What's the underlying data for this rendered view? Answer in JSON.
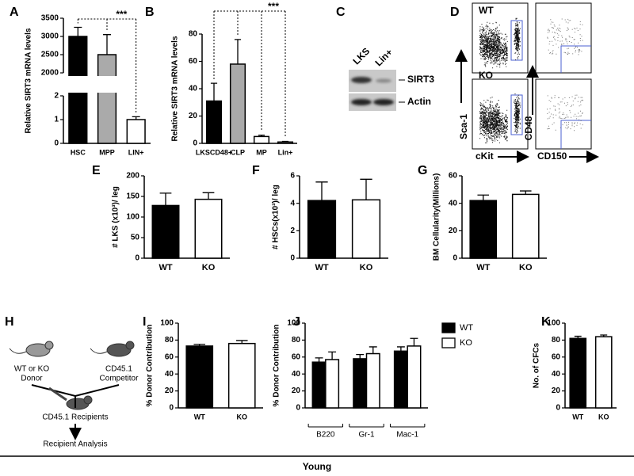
{
  "chart_data": [
    {
      "type": "bar",
      "label": "A",
      "ylabel": "Relative SIRT3 mRNA levels",
      "categories": [
        "HSC",
        "MPP",
        "LIN+"
      ],
      "values": [
        3000,
        2500,
        1
      ],
      "errors": [
        250,
        550,
        0.12
      ],
      "colors": [
        "#000000",
        "#aaaaaa",
        "#ffffff"
      ],
      "y_segments": [
        {
          "ylim": [
            0,
            2
          ],
          "yticks": [
            0,
            1,
            2
          ]
        },
        {
          "ylim": [
            2000,
            3500
          ],
          "yticks": [
            2000,
            2500,
            3000,
            3500
          ]
        }
      ],
      "significance": "***"
    },
    {
      "type": "bar",
      "label": "B",
      "ylabel": "Relative SIRT3 mRNA levels",
      "categories": [
        "LKSCD48+",
        "CLP",
        "MP",
        "Lin+"
      ],
      "values": [
        31,
        58,
        5,
        1
      ],
      "errors": [
        13,
        18,
        1,
        0.4
      ],
      "colors": [
        "#000000",
        "#aaaaaa",
        "#ffffff",
        "#ffffff"
      ],
      "ylim": [
        0,
        80
      ],
      "yticks": [
        0,
        20,
        40,
        60,
        80
      ],
      "significance": "***"
    },
    {
      "type": "bar",
      "label": "E",
      "ylabel": "# LKS (x10³)/ leg",
      "categories": [
        "WT",
        "KO"
      ],
      "values": [
        128,
        143
      ],
      "errors": [
        30,
        16
      ],
      "colors": [
        "#000000",
        "#ffffff"
      ],
      "ylim": [
        0,
        200
      ],
      "yticks": [
        0,
        50,
        100,
        150,
        200
      ]
    },
    {
      "type": "bar",
      "label": "F",
      "ylabel": "# HSCs(x10³)/ leg",
      "categories": [
        "WT",
        "KO"
      ],
      "values": [
        4.2,
        4.25
      ],
      "errors": [
        1.35,
        1.5
      ],
      "colors": [
        "#000000",
        "#ffffff"
      ],
      "ylim": [
        0,
        6
      ],
      "yticks": [
        0,
        2,
        4,
        6
      ]
    },
    {
      "type": "bar",
      "label": "G",
      "ylabel": "BM Cellularity(Millions)",
      "categories": [
        "WT",
        "KO"
      ],
      "values": [
        42,
        46.5
      ],
      "errors": [
        4,
        2.5
      ],
      "colors": [
        "#000000",
        "#ffffff"
      ],
      "ylim": [
        0,
        60
      ],
      "yticks": [
        0,
        20,
        40,
        60
      ]
    },
    {
      "type": "bar",
      "label": "I",
      "ylabel": "% Donor Contribution",
      "categories": [
        "WT",
        "KO"
      ],
      "values": [
        73,
        76
      ],
      "errors": [
        2,
        3.5
      ],
      "colors": [
        "#000000",
        "#ffffff"
      ],
      "ylim": [
        0,
        100
      ],
      "yticks": [
        0,
        20,
        40,
        60,
        80,
        100
      ]
    },
    {
      "type": "bar",
      "label": "J",
      "ylabel": "% Donor Contribution",
      "categories": [
        "B220",
        "Gr-1",
        "Mac-1"
      ],
      "series": [
        {
          "name": "WT",
          "color": "#000000",
          "values": [
            54,
            58,
            67
          ],
          "errors": [
            5,
            5,
            5
          ]
        },
        {
          "name": "KO",
          "color": "#ffffff",
          "values": [
            57,
            64,
            73
          ],
          "errors": [
            9,
            8,
            9
          ]
        }
      ],
      "ylim": [
        0,
        100
      ],
      "yticks": [
        0,
        20,
        40,
        60,
        80,
        100
      ]
    },
    {
      "type": "bar",
      "label": "K",
      "ylabel": "No. of CFCs",
      "categories": [
        "WT",
        "KO"
      ],
      "values": [
        82,
        84
      ],
      "errors": [
        2.5,
        2
      ],
      "colors": [
        "#000000",
        "#ffffff"
      ],
      "ylim": [
        0,
        100
      ],
      "yticks": [
        0,
        20,
        40,
        60,
        80,
        100
      ]
    }
  ],
  "blot": {
    "label": "C",
    "lanes": [
      "LKS",
      "Lin+"
    ],
    "bands": [
      "SIRT3",
      "Actin"
    ]
  },
  "flow": {
    "label": "D",
    "genotypes": [
      "WT",
      "KO"
    ],
    "left_xlabel": "cKit",
    "left_ylabel": "Sca-1",
    "right_xlabel": "CD150",
    "right_ylabel": "CD48"
  },
  "diagram": {
    "label": "H",
    "donor": [
      "WT or KO",
      "Donor"
    ],
    "competitor": [
      "CD45.1",
      "Competitor"
    ],
    "recipients": "CD45.1 Recipients",
    "analysis": "Recipient Analysis"
  },
  "footer": "Young"
}
